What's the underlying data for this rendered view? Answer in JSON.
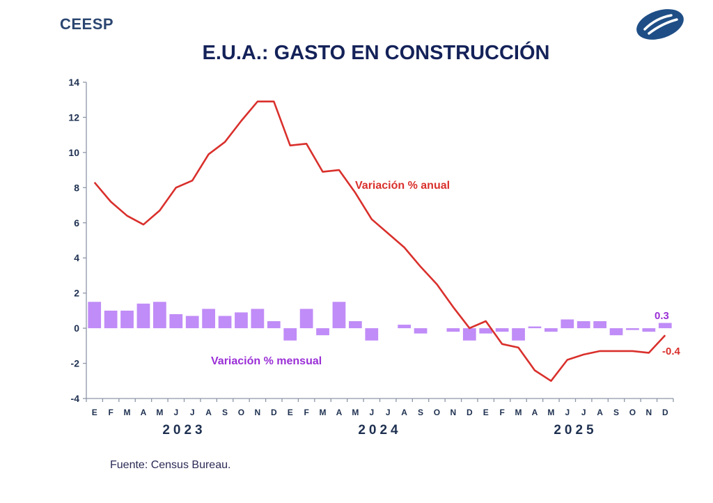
{
  "header": {
    "brand": "CEESP",
    "logo_icon": "ceesp-logo-icon",
    "title": "E.U.A.: GASTO EN CONSTRUCCIÓN"
  },
  "footer": {
    "source": "Fuente: Census Bureau."
  },
  "colors": {
    "line": "#d9302c",
    "bars": "#c08cf7",
    "bar_label": "#9a2fd6",
    "axis_text": "#1e3050",
    "title": "#142259"
  },
  "chart_data": {
    "type": "bar+line",
    "title": "E.U.A.: GASTO EN CONSTRUCCIÓN",
    "xlabel": "",
    "ylabel": "",
    "ylim": [
      -4,
      14
    ],
    "yticks": [
      "14",
      "12",
      "10",
      "8",
      "6",
      "4",
      "2",
      "0",
      "-2",
      "-4"
    ],
    "ytick_values": [
      14,
      12,
      10,
      8,
      6,
      4,
      2,
      0,
      -2,
      -4
    ],
    "grid": false,
    "categories": [
      "E",
      "F",
      "M",
      "A",
      "M",
      "J",
      "J",
      "A",
      "S",
      "O",
      "N",
      "D",
      "E",
      "F",
      "M",
      "A",
      "M",
      "J",
      "J",
      "A",
      "S",
      "O",
      "N",
      "D",
      "E",
      "F",
      "M",
      "A",
      "M",
      "J",
      "J",
      "A",
      "S",
      "O",
      "N",
      "D"
    ],
    "years": [
      "2023",
      "2024",
      "2025"
    ],
    "series": [
      {
        "name": "Variación % anual",
        "type": "line",
        "values": [
          8.3,
          7.2,
          6.4,
          5.9,
          6.7,
          8.0,
          8.4,
          9.9,
          10.6,
          11.8,
          12.9,
          12.9,
          10.4,
          10.5,
          8.9,
          9.0,
          7.7,
          6.2,
          5.4,
          4.6,
          3.5,
          2.5,
          1.2,
          0.0,
          0.4,
          -0.9,
          -1.1,
          -2.4,
          -3.0,
          -1.8,
          -1.5,
          -1.3,
          -1.3,
          -1.3,
          -1.4,
          -0.4
        ],
        "last_label": "-0.4"
      },
      {
        "name": "Variación % mensual",
        "type": "bar",
        "values": [
          1.5,
          1.0,
          1.0,
          1.4,
          1.5,
          0.8,
          0.7,
          1.1,
          0.7,
          0.9,
          1.1,
          0.4,
          -0.7,
          1.1,
          -0.4,
          1.5,
          0.4,
          -0.7,
          0.0,
          0.2,
          -0.3,
          0.0,
          -0.2,
          -0.7,
          -0.3,
          -0.2,
          -0.7,
          0.1,
          -0.2,
          0.5,
          0.4,
          0.4,
          -0.4,
          -0.1,
          -0.2,
          0.3
        ],
        "last_label": "0.3"
      }
    ],
    "annotations": [
      "Variación % anual",
      "Variación % mensual",
      "-0.4",
      "0.3"
    ]
  }
}
